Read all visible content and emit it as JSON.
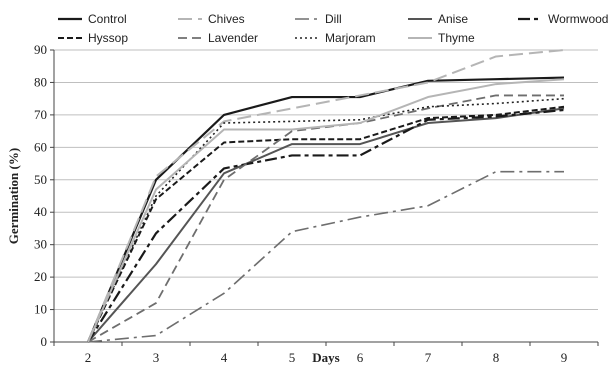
{
  "chart_data": {
    "type": "line",
    "xlabel": "Days",
    "ylabel": "Germination (%)",
    "x": [
      2,
      3,
      4,
      5,
      6,
      7,
      8,
      9
    ],
    "xlim": [
      1.5,
      9.5
    ],
    "ylim": [
      0,
      90
    ],
    "yticks": [
      0,
      10,
      20,
      30,
      40,
      50,
      60,
      70,
      80,
      90
    ],
    "xticks": [
      2,
      3,
      4,
      5,
      6,
      7,
      8,
      9
    ],
    "grid": "horizontal",
    "legend_position": "top",
    "series": [
      {
        "name": "Control",
        "color": "#1a1a1a",
        "dash": "solid",
        "width": 2.2,
        "values": [
          0,
          50,
          70,
          75.5,
          75.5,
          80.5,
          81,
          81.5
        ]
      },
      {
        "name": "Chives",
        "color": "#b5b5b5",
        "dash": "long-dash",
        "width": 2,
        "values": [
          0,
          51,
          68,
          72,
          76,
          80,
          88,
          90
        ]
      },
      {
        "name": "Dill",
        "color": "#6e6e6e",
        "dash": "dash-dot",
        "width": 1.6,
        "values": [
          0,
          2,
          15,
          34,
          38.5,
          42,
          52.5,
          52.5
        ]
      },
      {
        "name": "Anise",
        "color": "#555555",
        "dash": "solid",
        "width": 2,
        "values": [
          0,
          24,
          52,
          61,
          61,
          67.5,
          69,
          72
        ]
      },
      {
        "name": "Wormwood",
        "color": "#1a1a1a",
        "dash": "dash-dot-bold",
        "width": 2.2,
        "values": [
          0,
          33.5,
          53.5,
          57.5,
          57.5,
          68.5,
          69.5,
          71.5
        ]
      },
      {
        "name": "Hyssop",
        "color": "#1a1a1a",
        "dash": "short-dash",
        "width": 2,
        "values": [
          0,
          44,
          61.5,
          62.5,
          62.5,
          69,
          70,
          72.5
        ]
      },
      {
        "name": "Lavender",
        "color": "#6e6e6e",
        "dash": "dash",
        "width": 1.8,
        "values": [
          0,
          12,
          50,
          65,
          67.5,
          72,
          76,
          76
        ]
      },
      {
        "name": "Marjoram",
        "color": "#222222",
        "dash": "dotted",
        "width": 1.6,
        "values": [
          0,
          45,
          67.5,
          68,
          68.5,
          72.5,
          73.5,
          75
        ]
      },
      {
        "name": "Thyme",
        "color": "#b5b5b5",
        "dash": "solid",
        "width": 2,
        "values": [
          0,
          47,
          65.5,
          65.5,
          67.5,
          75.5,
          79.5,
          81
        ]
      }
    ]
  }
}
